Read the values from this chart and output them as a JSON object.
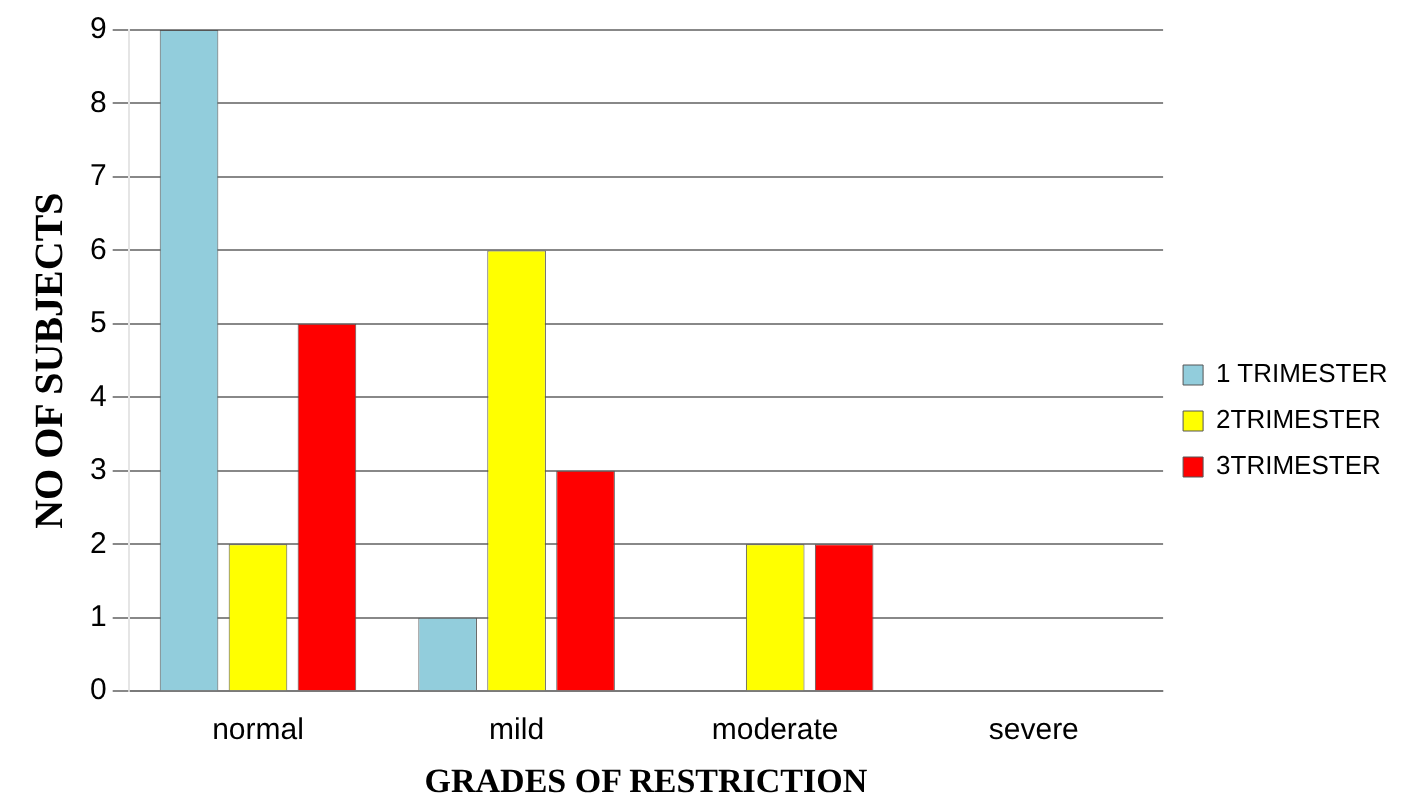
{
  "chart_data": {
    "type": "bar",
    "xlabel": "GRADES OF RESTRICTION",
    "ylabel": "NO OF SUBJECTS",
    "categories": [
      "normal",
      "mild",
      "moderate",
      "severe"
    ],
    "series": [
      {
        "name": "1 TRIMESTER",
        "color": "#92cddc",
        "values": [
          9,
          1,
          0,
          0
        ]
      },
      {
        "name": "2TRIMESTER",
        "color": "#ffff00",
        "values": [
          2,
          6,
          2,
          0
        ]
      },
      {
        "name": "3TRIMESTER",
        "color": "#ff0000",
        "values": [
          5,
          3,
          2,
          0
        ]
      }
    ],
    "ylim": [
      0,
      9
    ],
    "yticks": [
      0,
      1,
      2,
      3,
      4,
      5,
      6,
      7,
      8,
      9
    ],
    "grid": "y",
    "legend": "right"
  }
}
